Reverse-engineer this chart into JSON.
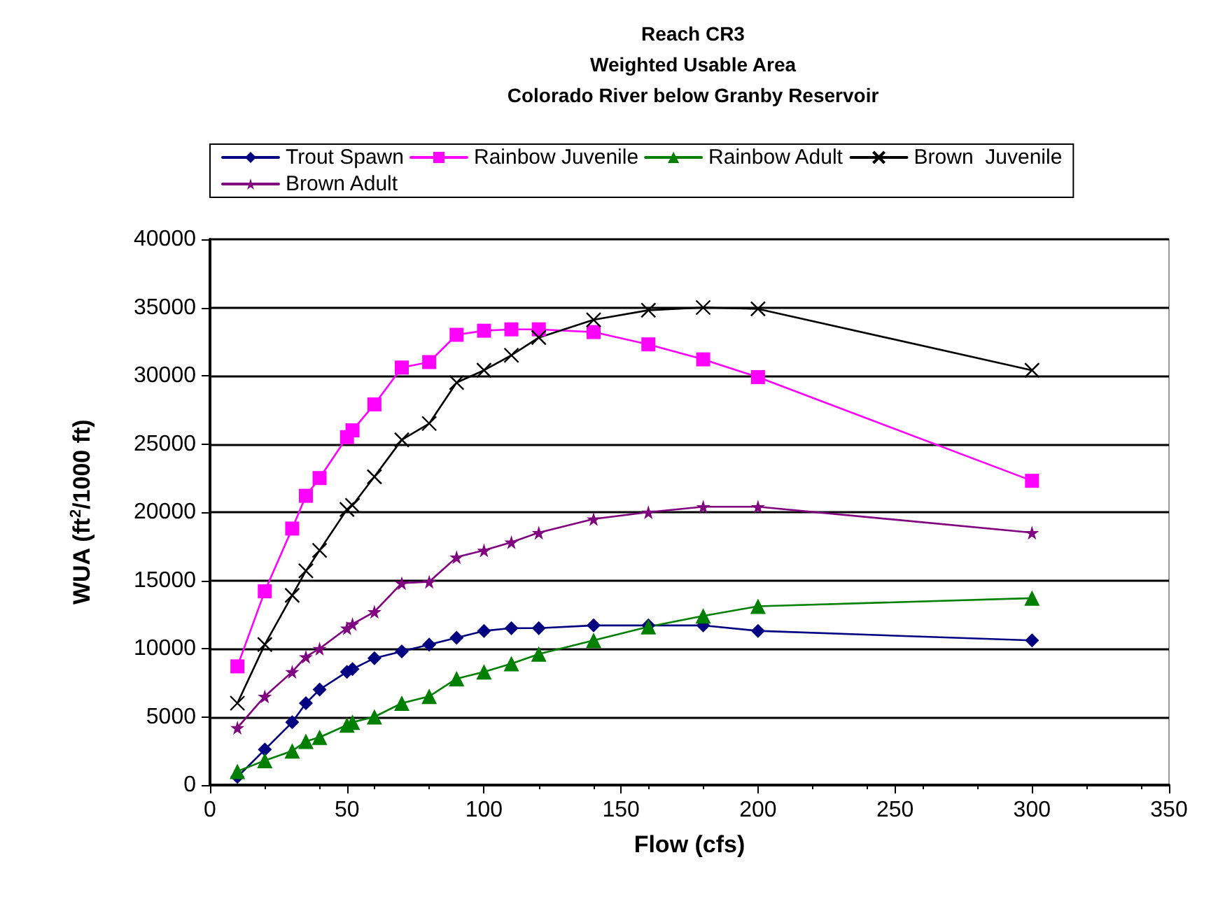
{
  "chart_data": {
    "type": "line",
    "title": "Reach CR3\nWeighted Usable Area\nColorado River below Granby Reservoir",
    "xlabel": "Flow (cfs)",
    "ylabel": "WUA (ft$^{2}$/1000 ft)",
    "x": [
      10,
      20,
      30,
      35,
      40,
      50,
      52,
      60,
      70,
      80,
      90,
      100,
      110,
      120,
      140,
      160,
      180,
      200,
      300
    ],
    "series": [
      {
        "name": "Trout Spawn",
        "color": "#000080",
        "marker": "diamond",
        "values": [
          600,
          2600,
          4600,
          6000,
          7000,
          8300,
          8500,
          9300,
          9800,
          10300,
          10800,
          11300,
          11500,
          11500,
          11700,
          11700,
          11700,
          11300,
          10600
        ]
      },
      {
        "name": "Rainbow Juvenile",
        "color": "#ff00ff",
        "marker": "square",
        "values": [
          8700,
          14200,
          18800,
          21200,
          22500,
          25500,
          26000,
          27900,
          30600,
          31000,
          33000,
          33300,
          33400,
          33400,
          33200,
          32300,
          31200,
          29900,
          22300
        ]
      },
      {
        "name": "Rainbow Adult",
        "color": "#008000",
        "marker": "triangle",
        "values": [
          1000,
          1800,
          2500,
          3200,
          3500,
          4400,
          4600,
          5000,
          6000,
          6500,
          7800,
          8300,
          8900,
          9600,
          10600,
          11600,
          12400,
          13100,
          13700
        ]
      },
      {
        "name": "Brown  Juvenile",
        "color": "#000000",
        "marker": "cross",
        "values": [
          6000,
          10300,
          13900,
          15700,
          17200,
          20200,
          20500,
          22600,
          25300,
          26500,
          29500,
          30400,
          31500,
          32800,
          34100,
          34800,
          35000,
          34900,
          30400
        ]
      },
      {
        "name": "Brown Adult",
        "color": "#800080",
        "marker": "star",
        "values": [
          4200,
          6500,
          8300,
          9400,
          10000,
          11500,
          11800,
          12700,
          14800,
          14900,
          16700,
          17200,
          17800,
          18500,
          19500,
          20000,
          20400,
          20400,
          18500
        ]
      }
    ],
    "xlim": [
      0,
      350
    ],
    "xticks": [
      0,
      50,
      100,
      150,
      200,
      250,
      300,
      350
    ],
    "ylim": [
      0,
      40000
    ],
    "yticks": [
      0,
      5000,
      10000,
      15000,
      20000,
      25000,
      30000,
      35000,
      40000
    ],
    "grid": "y",
    "legend": "top",
    "line_style": "solid"
  }
}
